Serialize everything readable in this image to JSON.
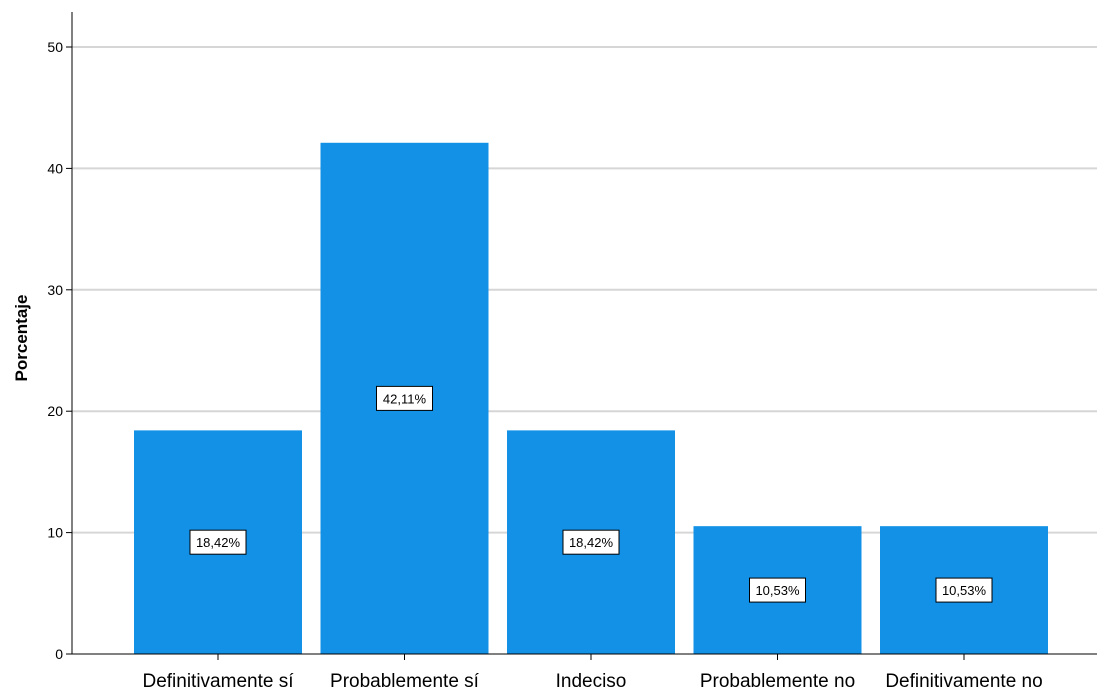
{
  "chart_data": {
    "type": "bar",
    "categories": [
      "Definitivamente sí",
      "Probablemente sí",
      "Indeciso",
      "Probablemente no",
      "Definitivamente no"
    ],
    "values": [
      18.42,
      42.11,
      18.42,
      10.53,
      10.53
    ],
    "data_labels": [
      "18,42%",
      "42,11%",
      "18,42%",
      "10,53%",
      "10,53%"
    ],
    "title": "",
    "xlabel": "",
    "ylabel": "Porcentaje",
    "ylim": [
      0,
      50
    ],
    "yticks": [
      "0",
      "10",
      "20",
      "30",
      "40",
      "50"
    ],
    "ytick_values": [
      0,
      10,
      20,
      30,
      40,
      50
    ],
    "grid": true,
    "colors": {
      "bar": "#1391e6",
      "grid": "#d6d6d6",
      "axis": "#000000"
    }
  }
}
